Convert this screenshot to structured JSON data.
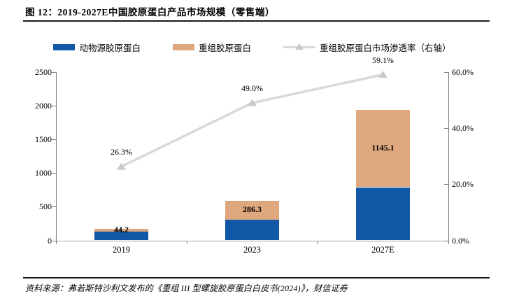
{
  "figure": {
    "title": "图 12：2019-2027E中国胶原蛋白产品市场规模（零售端）",
    "source": "资料来源：弗若斯特沙利文发布的《重组 III 型螺旋胶原蛋白白皮书(2024)》，财信证券"
  },
  "legend": {
    "items": [
      {
        "label": "动物源胶原蛋白",
        "marker": "box",
        "color": "#1159A6"
      },
      {
        "label": "重组胶原蛋白",
        "marker": "box",
        "color": "#DEA77E"
      },
      {
        "label": "重组胶原蛋白市场渗透率（右轴）",
        "marker": "line-triangle",
        "color": "#D9D9D9",
        "marker_color": "#C9C9C9"
      }
    ]
  },
  "chart_data": {
    "type": "combo-stacked-bar-line",
    "title": "2019-2027E中国胶原蛋白产品市场规模（零售端）",
    "categories": [
      "2019",
      "2023",
      "2027E"
    ],
    "series": [
      {
        "name": "动物源胶原蛋白",
        "type": "bar",
        "stack": true,
        "axis": "left",
        "color": "#1159A6",
        "values": [
          130,
          305,
          790
        ],
        "labels": [
          "",
          "",
          ""
        ]
      },
      {
        "name": "重组胶原蛋白",
        "type": "bar",
        "stack": true,
        "axis": "left",
        "color": "#DEA77E",
        "values": [
          44.2,
          286.3,
          1145.1
        ],
        "labels": [
          "44.2",
          "286.3",
          "1145.1"
        ]
      },
      {
        "name": "重组胶原蛋白市场渗透率（右轴）",
        "type": "line",
        "axis": "right",
        "color": "#D9D9D9",
        "marker": "triangle",
        "marker_color": "#C9C9C9",
        "values": [
          26.3,
          49.0,
          59.1
        ],
        "labels": [
          "26.3%",
          "49.0%",
          "59.1%"
        ]
      }
    ],
    "left_axis": {
      "min": 0,
      "max": 2500,
      "ticks": [
        "0",
        "500",
        "1000",
        "1500",
        "2000",
        "2500"
      ]
    },
    "right_axis": {
      "min": 0,
      "max": 60,
      "ticks": [
        "0.0%",
        "20.0%",
        "40.0%",
        "60.0%"
      ]
    },
    "grid": false,
    "legend_position": "top"
  }
}
